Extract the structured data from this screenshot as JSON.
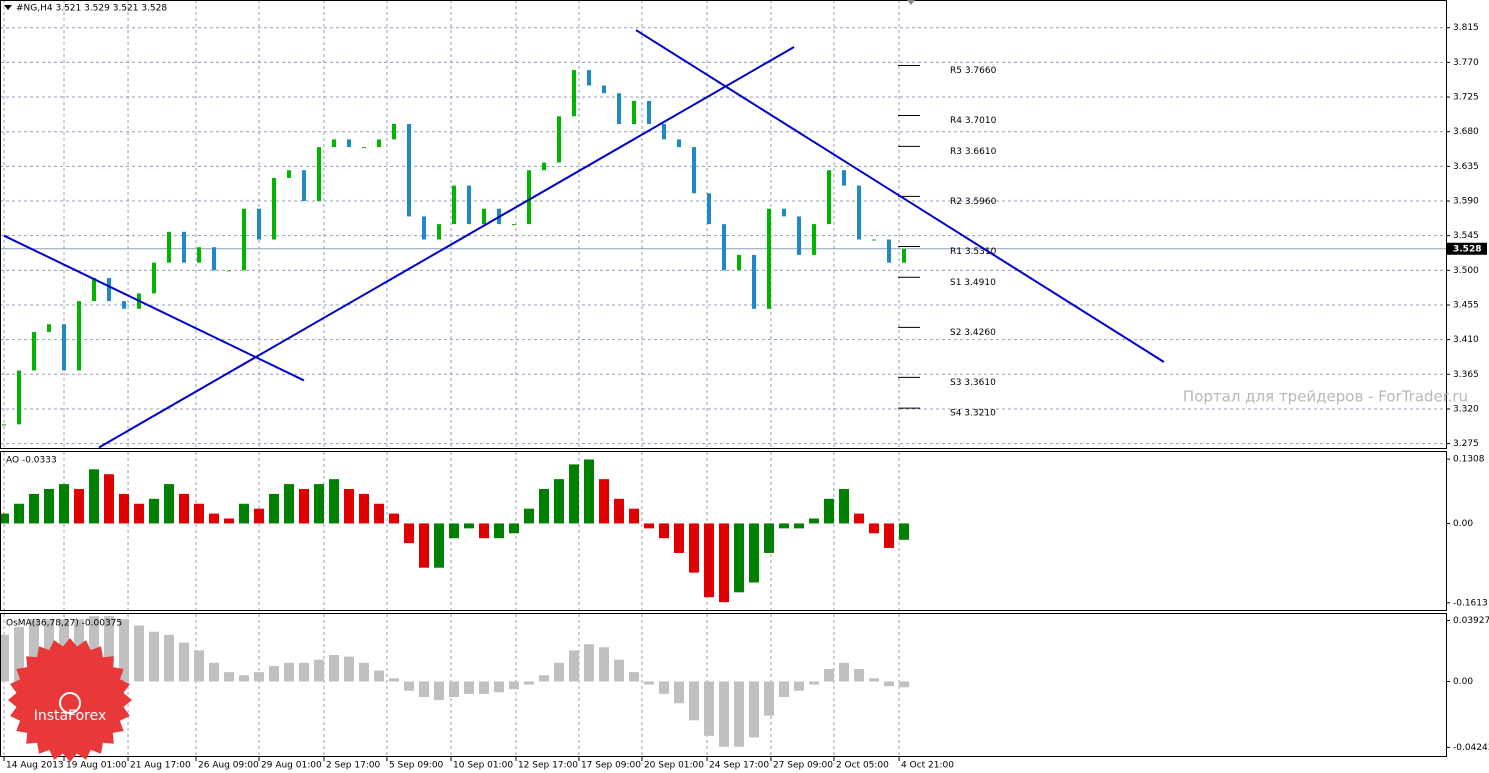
{
  "chart_data": [
    {
      "type": "candlestick",
      "title": "#NG,H4  3.521 3.529 3.521 3.528",
      "series": [
        {
          "name": "#NG,H4",
          "color": "#00b400",
          "down_color": "#1e88c8",
          "values": [
            3.3,
            3.37,
            3.42,
            3.43,
            3.37,
            3.46,
            3.49,
            3.46,
            3.45,
            3.47,
            3.51,
            3.55,
            3.51,
            3.53,
            3.5,
            3.5,
            3.58,
            3.54,
            3.62,
            3.63,
            3.59,
            3.66,
            3.67,
            3.66,
            3.66,
            3.67,
            3.69,
            3.57,
            3.54,
            3.56,
            3.61,
            3.56,
            3.58,
            3.56,
            3.56,
            3.63,
            3.64,
            3.7,
            3.76,
            3.74,
            3.73,
            3.69,
            3.72,
            3.69,
            3.67,
            3.66,
            3.6,
            3.56,
            3.5,
            3.52,
            3.45,
            3.58,
            3.57,
            3.52,
            3.56,
            3.63,
            3.61,
            3.54,
            3.54,
            3.51,
            3.528
          ]
        }
      ],
      "current": {
        "value": 3.528,
        "label": "3.528"
      },
      "ylim": [
        3.268,
        3.851
      ],
      "yticks": [
        3.815,
        {
          "value": 3.77,
          "label": "3.770"
        },
        3.725,
        {
          "value": 3.68,
          "label": "3.680"
        },
        3.635,
        {
          "value": 3.59,
          "label": "3.590"
        },
        3.545,
        {
          "value": 3.5,
          "label": "3.500"
        },
        3.455,
        {
          "value": 3.41,
          "label": "3.410"
        },
        3.365,
        {
          "value": 3.32,
          "label": "3.320"
        },
        3.275
      ],
      "xticks": [
        {
          "value": 0,
          "label": "14 Aug 2013"
        },
        {
          "value": 4,
          "label": "19 Aug 01:00"
        },
        {
          "value": 8.27,
          "label": "21 Aug 17:00"
        },
        {
          "value": 12.8,
          "label": "26 Aug 09:00"
        },
        {
          "value": 17,
          "label": "29 Aug 01:00"
        },
        {
          "value": 21.33,
          "label": "2 Sep 17:00"
        },
        {
          "value": 25.53,
          "label": "5 Sep 09:00"
        },
        {
          "value": 29.8,
          "label": "10 Sep 01:00"
        },
        {
          "value": 34.13,
          "label": "12 Sep 17:00"
        },
        {
          "value": 38.33,
          "label": "17 Sep 09:00"
        },
        {
          "value": 42.53,
          "label": "20 Sep 01:00"
        },
        {
          "value": 46.87,
          "label": "24 Sep 17:00"
        },
        {
          "value": 51.13,
          "label": "27 Sep 09:00"
        },
        {
          "value": 55.33,
          "label": "2 Oct 05:00"
        },
        {
          "value": 59.67,
          "label": "4 Oct 21:00"
        }
      ],
      "levels": [
        {
          "label": "R5 3.7660",
          "value": 3.766
        },
        {
          "label": "R4 3.7010",
          "value": 3.701
        },
        {
          "label": "R3 3.6610",
          "value": 3.661
        },
        {
          "label": "R2 3.5960",
          "value": 3.596
        },
        {
          "label": "R1 3.5310",
          "value": 3.531
        },
        {
          "label": "S1 3.4910",
          "value": 3.491
        },
        {
          "label": "S2 3.4260",
          "value": 3.426
        },
        {
          "label": "S3 3.3610",
          "value": 3.361
        },
        {
          "label": "S4 3.3210",
          "value": 3.321
        }
      ],
      "trendlines": [
        {
          "x": [
            0,
            20
          ],
          "y": [
            3.545,
            3.357
          ]
        },
        {
          "x": [
            6.33,
            52.67
          ],
          "y": [
            3.27,
            3.79
          ]
        },
        {
          "x": [
            42.13,
            77.33
          ],
          "y": [
            3.812,
            3.381
          ]
        }
      ],
      "trend_color": "#0000c8",
      "annotations": [
        "Портал для трейдеров - ForTrader.ru",
        "InstaForex"
      ],
      "grid": true
    },
    {
      "type": "histogram",
      "title": "AO -0.0333",
      "series": [
        {
          "name": "AO",
          "color": "#008000",
          "down_color": "#e00000",
          "values": [
            0.02,
            0.04,
            0.06,
            0.07,
            0.08,
            0.07,
            0.11,
            0.1,
            0.06,
            0.04,
            0.05,
            0.08,
            0.06,
            0.04,
            0.02,
            0.01,
            0.04,
            0.03,
            0.06,
            0.08,
            0.07,
            0.08,
            0.09,
            0.07,
            0.06,
            0.04,
            0.02,
            -0.04,
            -0.09,
            -0.09,
            -0.03,
            -0.01,
            -0.03,
            -0.03,
            -0.02,
            0.03,
            0.07,
            0.09,
            0.12,
            0.13,
            0.09,
            0.05,
            0.03,
            -0.01,
            -0.03,
            -0.06,
            -0.1,
            -0.15,
            -0.16,
            -0.14,
            -0.12,
            -0.06,
            -0.01,
            -0.01,
            0.01,
            0.05,
            0.07,
            0.02,
            -0.02,
            -0.05,
            -0.0333
          ]
        }
      ],
      "ylim": [
        -0.178,
        0.1452
      ],
      "yticks": [
        0.1308,
        {
          "value": 0,
          "label": "0.00"
        },
        -0.1613
      ],
      "grid": true
    },
    {
      "type": "histogram",
      "title": "OsMA(36,78,27) -0.00375",
      "series": [
        {
          "name": "OsMA",
          "color": "#c0c0c0",
          "values": [
            0.03,
            0.035,
            0.04,
            0.04,
            0.04,
            0.04,
            0.042,
            0.042,
            0.04,
            0.036,
            0.032,
            0.03,
            0.025,
            0.02,
            0.012,
            0.006,
            0.004,
            0.006,
            0.01,
            0.012,
            0.012,
            0.014,
            0.017,
            0.016,
            0.012,
            0.007,
            0.002,
            -0.006,
            -0.01,
            -0.012,
            -0.01,
            -0.008,
            -0.008,
            -0.007,
            -0.005,
            -0.002,
            0.004,
            0.012,
            0.02,
            0.024,
            0.022,
            0.014,
            0.006,
            -0.002,
            -0.008,
            -0.014,
            -0.025,
            -0.035,
            -0.042,
            -0.042,
            -0.036,
            -0.022,
            -0.01,
            -0.006,
            -0.002,
            0.008,
            0.012,
            0.008,
            0.002,
            -0.003,
            -0.00375
          ]
        }
      ],
      "ylim": [
        -0.0486,
        0.0434
      ],
      "yticks": [
        0.03927,
        {
          "value": 0,
          "label": "0.00"
        },
        -0.04243
      ],
      "grid": true
    }
  ]
}
